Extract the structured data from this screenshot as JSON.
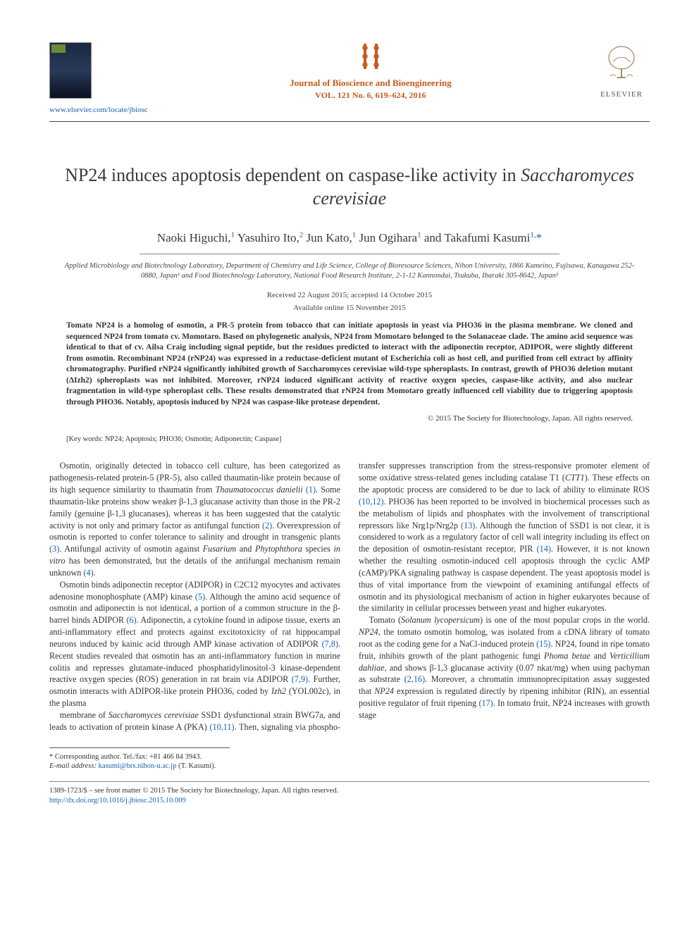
{
  "header": {
    "locate_url": "www.elsevier.com/locate/jbiosc",
    "journal_name": "Journal of Bioscience and Bioengineering",
    "journal_vol": "VOL. 121 No. 6, 619–624, 2016",
    "publisher": "ELSEVIER",
    "journal_icon_color": "#c75a1a"
  },
  "article": {
    "title_pre": "NP24 induces apoptosis dependent on caspase-like activity in ",
    "title_ital": "Saccharomyces cerevisiae",
    "authors_html": "Naoki Higuchi,<sup>1</sup> Yasuhiro Ito,<sup>2</sup> Jun Kato,<sup>1</sup> Jun Ogihara<sup>1</sup> and Takafumi Kasumi<sup>1,</sup><span class='star'>*</span>",
    "affiliations": "Applied Microbiology and Biotechnology Laboratory, Department of Chemistry and Life Science, College of Bioresource Sciences, Nihon University, 1866 Kameino, Fujisawa, Kanagawa 252-0880, Japan¹ and Food Biotechnology Laboratory, National Food Research Institute, 2-1-12 Kannondai, Tsukuba, Ibaraki 305-8642, Japan²",
    "received": "Received 22 August 2015; accepted 14 October 2015",
    "online": "Available online 15 November 2015",
    "abstract": "Tomato NP24 is a homolog of osmotin, a PR-5 protein from tobacco that can initiate apoptosis in yeast via PHO36 in the plasma membrane. We cloned and sequenced NP24 from tomato cv. Momotaro. Based on phylogenetic analysis, NP24 from Momotaro belonged to the Solanaceae clade. The amino acid sequence was identical to that of cv. Ailsa Craig including signal peptide, but the residues predicted to interact with the adiponectin receptor, ADIPOR, were slightly different from osmotin. Recombinant NP24 (rNP24) was expressed in a reductase-deficient mutant of Escherichia coli as host cell, and purified from cell extract by affinity chromatography. Purified rNP24 significantly inhibited growth of Saccharomyces cerevisiae wild-type spheroplasts. In contrast, growth of PHO36 deletion mutant (ΔIzh2) spheroplasts was not inhibited. Moreover, rNP24 induced significant activity of reactive oxygen species, caspase-like activity, and also nuclear fragmentation in wild-type spheroplast cells. These results demonstrated that rNP24 from Momotaro greatly influenced cell viability due to triggering apoptosis through PHO36. Notably, apoptosis induced by NP24 was caspase-like protease dependent.",
    "copyright": "© 2015 The Society for Biotechnology, Japan. All rights reserved.",
    "keywords": "[Key words: NP24; Apoptosis; PHO36; Osmotin; Adiponectin; Caspase]"
  },
  "body": {
    "p1": "Osmotin, originally detected in tobacco cell culture, has been categorized as pathogenesis-related protein-5 (PR-5), also called thaumatin-like protein because of its high sequence similarity to thaumatin from <span class='ital'>Thaumatococcus danielii</span> <span class='ref'>(1)</span>. Some thaumatin-like proteins show weaker β-1,3 glucanase activity than those in the PR-2 family (genuine β-1,3 glucanases), whereas it has been suggested that the catalytic activity is not only and primary factor as antifungal function <span class='ref'>(2)</span>. Overexpression of osmotin is reported to confer tolerance to salinity and drought in transgenic plants <span class='ref'>(3)</span>. Antifungal activity of osmotin against <span class='ital'>Fusarium</span> and <span class='ital'>Phytophthora</span> species <span class='ital'>in vitro</span> has been demonstrated, but the details of the antifungal mechanism remain unknown <span class='ref'>(4)</span>.",
    "p2": "Osmotin binds adiponectin receptor (ADIPOR) in C2C12 myocytes and activates adenosine monophosphate (AMP) kinase <span class='ref'>(5)</span>. Although the amino acid sequence of osmotin and adiponectin is not identical, a portion of a common structure in the β-barrel binds ADIPOR <span class='ref'>(6)</span>. Adiponectin, a cytokine found in adipose tissue, exerts an anti-inflammatory effect and protects against excitotoxicity of rat hippocampal neurons induced by kainic acid through AMP kinase activation of ADIPOR <span class='ref'>(7,8)</span>. Recent studies revealed that osmotin has an anti-inflammatory function in murine colitis and represses glutamate-induced phosphatidylinositol-3 kinase-dependent reactive oxygen species (ROS) generation in rat brain via ADIPOR <span class='ref'>(7,9)</span>. Further, osmotin interacts with ADIPOR-like protein PHO36, coded by <span class='ital'>Izh2</span> (YOL002c), in the plasma",
    "p3": "membrane of <span class='ital'>Saccharomyces cerevisiae</span> SSD1 dysfunctional strain BWG7a, and leads to activation of protein kinase A (PKA) <span class='ref'>(10,11)</span>. Then, signaling via phospho-transfer suppresses transcription from the stress-responsive promoter element of some oxidative stress-related genes including catalase T1 (<span class='ital'>CTT1</span>). These effects on the apoptotic process are considered to be due to lack of ability to eliminate ROS <span class='ref'>(10,12)</span>. PHO36 has been reported to be involved in biochemical processes such as the metabolism of lipids and phosphates with the involvement of transcriptional repressors like Nrg1p/Nrg2p <span class='ref'>(13)</span>. Although the function of SSD1 is not clear, it is considered to work as a regulatory factor of cell wall integrity including its effect on the deposition of osmotin-resistant receptor, PIR <span class='ref'>(14)</span>. However, it is not known whether the resulting osmotin-induced cell apoptosis through the cyclic AMP (cAMP)/PKA signaling pathway is caspase dependent. The yeast apoptosis model is thus of vital importance from the viewpoint of examining antifungal effects of osmotin and its physiological mechanism of action in higher eukaryotes because of the similarity in cellular processes between yeast and higher eukaryotes.",
    "p4": "Tomato (<span class='ital'>Solanum lycopersicum</span>) is one of the most popular crops in the world. <span class='ital'>NP24</span>, the tomato osmotin homolog, was isolated from a cDNA library of tomato root as the coding gene for a NaCl-induced protein <span class='ref'>(15)</span>. NP24, found in ripe tomato fruit, inhibits growth of the plant pathogenic fungi <span class='ital'>Phoma betae</span> and <span class='ital'>Verticillium dahliae</span>, and shows β-1,3 glucanase activity (0.07 nkat/mg) when using pachyman as substrate <span class='ref'>(2,16)</span>. Moreover, a chromatin immunoprecipitation assay suggested that <span class='ital'>NP24</span> expression is regulated directly by ripening inhibitor (RIN), an essential positive regulator of fruit ripening <span class='ref'>(17)</span>. In tomato fruit, NP24 increases with growth stage"
  },
  "footer": {
    "corresp_label": "* Corresponding author. Tel./fax: +81 466 84 3943.",
    "email_label": "E-mail address:",
    "email": "kasumi@brs.nihon-u.ac.jp",
    "email_who": "(T. Kasumi).",
    "issn_line": "1389-1723/$ – see front matter © 2015 The Society for Biotechnology, Japan. All rights reserved.",
    "doi": "http://dx.doi.org/10.1016/j.jbiosc.2015.10.009"
  },
  "colors": {
    "link": "#1560b3",
    "accent": "#c75a1a",
    "text": "#333333",
    "rule": "#444444"
  }
}
